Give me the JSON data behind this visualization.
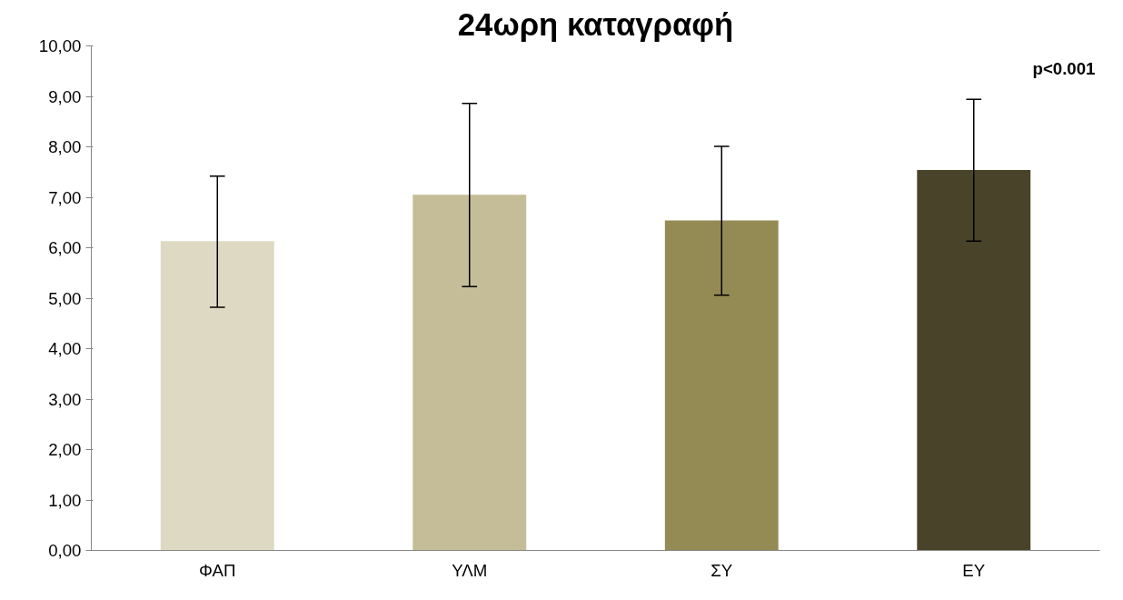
{
  "chart_data": {
    "type": "bar",
    "title": "24ωρη καταγραφή",
    "annotations": [
      "p<0.001"
    ],
    "categories": [
      "ΦΑΠ",
      "ΥΛΜ",
      "ΣΥ",
      "ΕΥ"
    ],
    "values": [
      6.13,
      7.05,
      6.54,
      7.54
    ],
    "colors": [
      "#ddd9c3",
      "#c4bd97",
      "#948a54",
      "#494429"
    ],
    "errors": [
      [
        4.82,
        7.42
      ],
      [
        5.23,
        8.86
      ],
      [
        5.06,
        8.01
      ],
      [
        6.13,
        8.94
      ]
    ],
    "ylim": [
      0,
      10
    ],
    "yticks": [
      {
        "value": 0,
        "label": "0,00"
      },
      {
        "value": 1,
        "label": "1,00"
      },
      {
        "value": 2,
        "label": "2,00"
      },
      {
        "value": 3,
        "label": "3,00"
      },
      {
        "value": 4,
        "label": "4,00"
      },
      {
        "value": 5,
        "label": "5,00"
      },
      {
        "value": 6,
        "label": "6,00"
      },
      {
        "value": 7,
        "label": "7,00"
      },
      {
        "value": 8,
        "label": "8,00"
      },
      {
        "value": 9,
        "label": "9,00"
      },
      {
        "value": 10,
        "label": "10,00"
      }
    ],
    "grid": false
  }
}
